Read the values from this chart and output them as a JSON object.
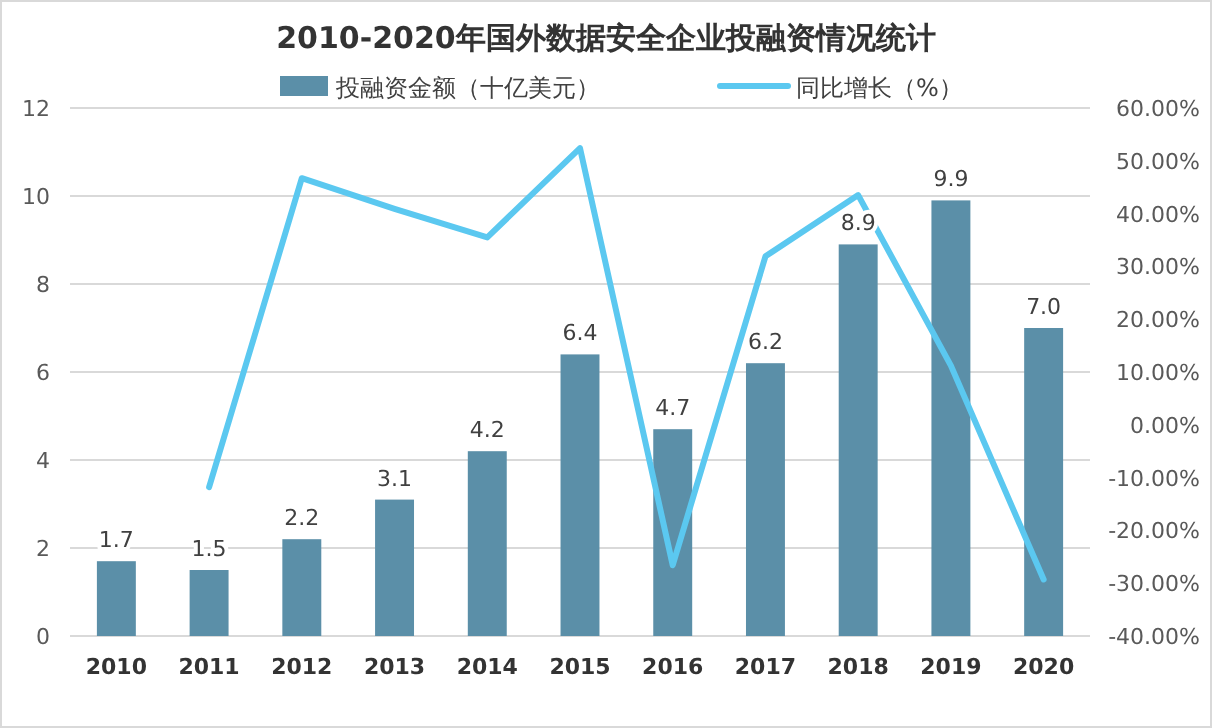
{
  "chart_data": {
    "type": "bar",
    "title": "2010-2020年国外数据安全企业投融资情况统计",
    "categories": [
      "2010",
      "2011",
      "2012",
      "2013",
      "2014",
      "2015",
      "2016",
      "2017",
      "2018",
      "2019",
      "2020"
    ],
    "series": [
      {
        "name": "投融资金额（十亿美元）",
        "color": "#5b8fa8",
        "values": [
          1.7,
          1.5,
          2.2,
          3.1,
          4.2,
          6.4,
          4.7,
          6.2,
          8.9,
          9.9,
          7.0
        ],
        "value_labels": [
          "1.7",
          "1.5",
          "2.2",
          "3.1",
          "4.2",
          "6.4",
          "4.7",
          "6.2",
          "8.9",
          "9.9",
          "7.0"
        ]
      },
      {
        "name": "同比增长（%）",
        "type": "line",
        "axis": "y2",
        "color": "#5bc8f0",
        "values": [
          null,
          -11.8,
          46.7,
          40.9,
          35.5,
          52.4,
          -26.6,
          31.9,
          43.5,
          11.2,
          -29.3
        ]
      }
    ],
    "ylim": [
      0,
      12
    ],
    "yticks": [
      0,
      2,
      4,
      6,
      8,
      10,
      12
    ],
    "y2lim": [
      -40,
      60
    ],
    "y2ticks": [
      {
        "value": -40,
        "label": "-40.00%"
      },
      {
        "value": -30,
        "label": "-30.00%"
      },
      {
        "value": -20,
        "label": "-20.00%"
      },
      {
        "value": -10,
        "label": "-10.00%"
      },
      {
        "value": 0,
        "label": "0.00%"
      },
      {
        "value": 10,
        "label": "10.00%"
      },
      {
        "value": 20,
        "label": "20.00%"
      },
      {
        "value": 30,
        "label": "30.00%"
      },
      {
        "value": 40,
        "label": "40.00%"
      },
      {
        "value": 50,
        "label": "50.00%"
      },
      {
        "value": 60,
        "label": "60.00%"
      }
    ],
    "grid": "y",
    "legend": "top"
  }
}
